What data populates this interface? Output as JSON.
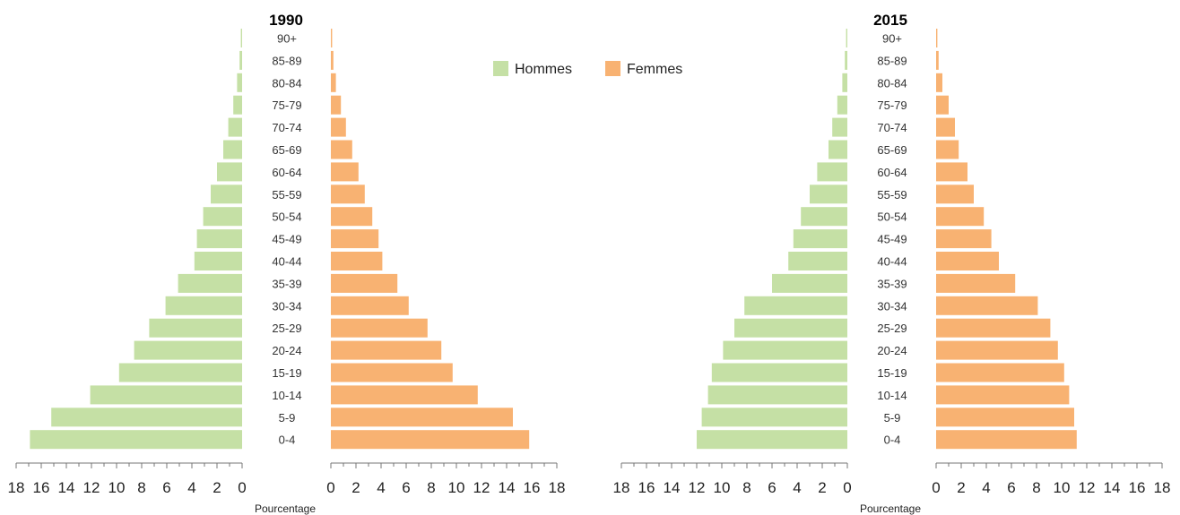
{
  "colors": {
    "men": "#c5e0a5",
    "women": "#f8b272"
  },
  "legend": {
    "men_label": "Hommes",
    "women_label": "Femmes"
  },
  "chart_data": [
    {
      "type": "bar",
      "title": "1990",
      "xlabel": "Pourcentage",
      "categories": [
        "90+",
        "85-89",
        "80-84",
        "75-79",
        "70-74",
        "65-69",
        "60-64",
        "55-59",
        "50-54",
        "45-49",
        "40-44",
        "35-39",
        "30-34",
        "25-29",
        "20-24",
        "15-19",
        "10-14",
        "5-9",
        "0-4"
      ],
      "series": [
        {
          "name": "Hommes",
          "values": [
            0.1,
            0.2,
            0.4,
            0.7,
            1.1,
            1.5,
            2.0,
            2.5,
            3.1,
            3.6,
            3.8,
            5.1,
            6.1,
            7.4,
            8.6,
            9.8,
            12.1,
            15.2,
            16.9
          ]
        },
        {
          "name": "Femmes",
          "values": [
            0.1,
            0.2,
            0.4,
            0.8,
            1.2,
            1.7,
            2.2,
            2.7,
            3.3,
            3.8,
            4.1,
            5.3,
            6.2,
            7.7,
            8.8,
            9.7,
            11.7,
            14.5,
            15.8
          ]
        }
      ],
      "xlim": [
        0,
        18
      ],
      "xticks": [
        "0",
        "2",
        "4",
        "6",
        "8",
        "10",
        "12",
        "14",
        "16",
        "18"
      ],
      "grid": false,
      "legend": "top-right"
    },
    {
      "type": "bar",
      "title": "2015",
      "xlabel": "Pourcentage",
      "categories": [
        "90+",
        "85-89",
        "80-84",
        "75-79",
        "70-74",
        "65-69",
        "60-64",
        "55-59",
        "50-54",
        "45-49",
        "40-44",
        "35-39",
        "30-34",
        "25-29",
        "20-24",
        "15-19",
        "10-14",
        "5-9",
        "0-4"
      ],
      "series": [
        {
          "name": "Hommes",
          "values": [
            0.1,
            0.2,
            0.4,
            0.8,
            1.2,
            1.5,
            2.4,
            3.0,
            3.7,
            4.3,
            4.7,
            6.0,
            8.2,
            9.0,
            9.9,
            10.8,
            11.1,
            11.6,
            12.0
          ]
        },
        {
          "name": "Femmes",
          "values": [
            0.1,
            0.2,
            0.5,
            1.0,
            1.5,
            1.8,
            2.5,
            3.0,
            3.8,
            4.4,
            5.0,
            6.3,
            8.1,
            9.1,
            9.7,
            10.2,
            10.6,
            11.0,
            11.2
          ]
        }
      ],
      "xlim": [
        0,
        18
      ],
      "xticks": [
        "0",
        "2",
        "4",
        "6",
        "8",
        "10",
        "12",
        "14",
        "16",
        "18"
      ],
      "grid": false
    }
  ]
}
